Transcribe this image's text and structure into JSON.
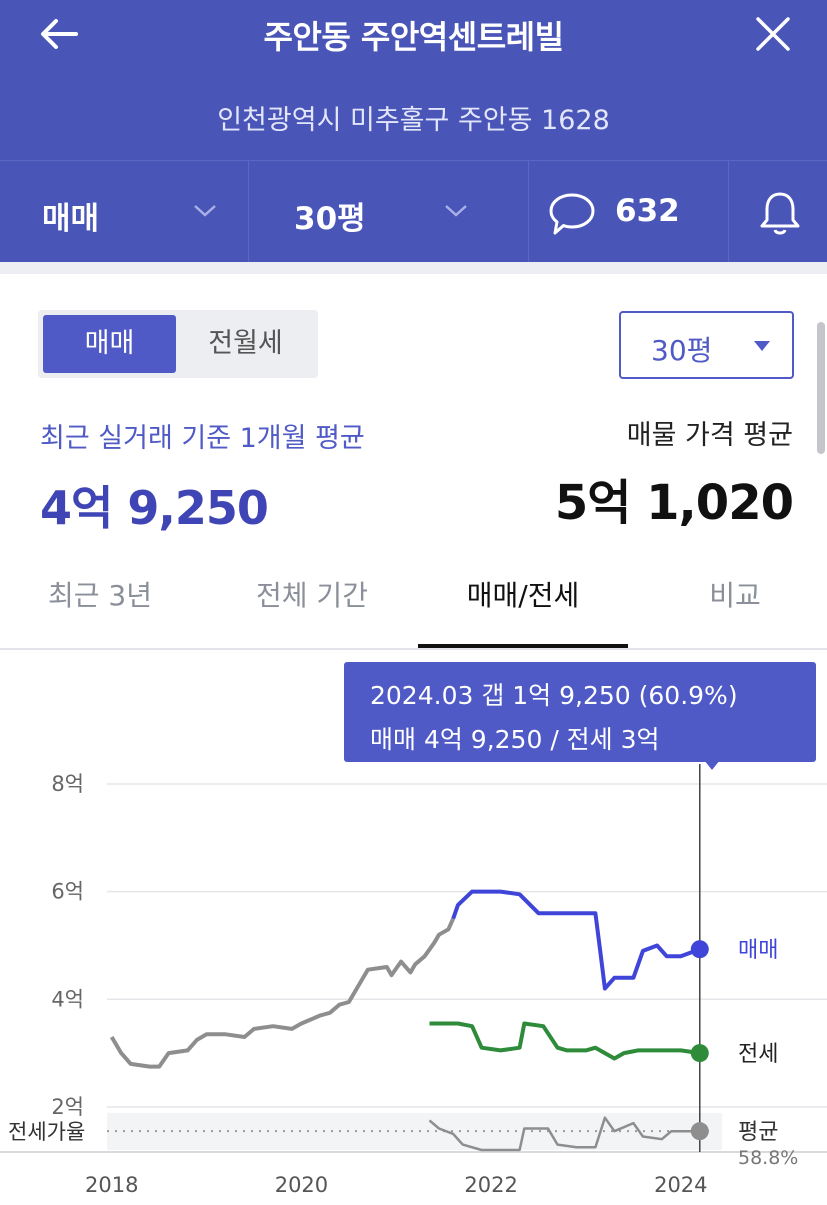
{
  "header": {
    "title": "주안동 주안역센트레빌",
    "address": "인천광역시 미추홀구 주안동 1628",
    "filters": {
      "deal_type": "매매",
      "size": "30평",
      "comment_count": "632"
    }
  },
  "controls": {
    "segment": [
      "매매",
      "전월세"
    ],
    "selected_segment": "매매",
    "size_select": "30평"
  },
  "summary": {
    "recent_label": "최근 실거래 기준 1개월 평균",
    "recent_value": "4억 9,250",
    "listing_label": "매물 가격 평균",
    "listing_value": "5억 1,020"
  },
  "tabs": [
    {
      "label": "최근 3년",
      "active": false
    },
    {
      "label": "전체 기간",
      "active": false
    },
    {
      "label": "매매/전세",
      "active": true
    },
    {
      "label": "비교",
      "active": false
    }
  ],
  "tooltip": {
    "line1": "2024.03  갭 1억 9,250 (60.9%)",
    "line2": "매매 4억 9,250 / 전세 3억"
  },
  "chart_data": {
    "type": "line",
    "y_unit": "억",
    "ylim": [
      1.2,
      8
    ],
    "yticks": [
      {
        "value": 8,
        "label": "8억"
      },
      {
        "value": 6,
        "label": "6억"
      },
      {
        "value": 4,
        "label": "4억"
      },
      {
        "value": 2,
        "label": "2억"
      }
    ],
    "xlim": [
      2017.95,
      2024.35
    ],
    "xticks": [
      {
        "value": 2018.0,
        "label": "2018"
      },
      {
        "value": 2020.0,
        "label": "2020"
      },
      {
        "value": 2022.0,
        "label": "2022"
      },
      {
        "value": 2024.0,
        "label": "2024"
      }
    ],
    "colors": {
      "sale": "#3f45d8",
      "sale_before": "#8e8e8e",
      "jeonse": "#2e8b3a",
      "ratio": "#8e8e8e",
      "cursor": "#444444"
    },
    "series": [
      {
        "name": "매매",
        "points": [
          [
            2018.0,
            3.3
          ],
          [
            2018.1,
            3.0
          ],
          [
            2018.2,
            2.8
          ],
          [
            2018.4,
            2.75
          ],
          [
            2018.5,
            2.75
          ],
          [
            2018.6,
            3.0
          ],
          [
            2018.8,
            3.05
          ],
          [
            2018.9,
            3.25
          ],
          [
            2019.0,
            3.35
          ],
          [
            2019.2,
            3.35
          ],
          [
            2019.4,
            3.3
          ],
          [
            2019.5,
            3.45
          ],
          [
            2019.7,
            3.5
          ],
          [
            2019.9,
            3.45
          ],
          [
            2020.0,
            3.55
          ],
          [
            2020.2,
            3.7
          ],
          [
            2020.3,
            3.75
          ],
          [
            2020.4,
            3.9
          ],
          [
            2020.5,
            3.95
          ],
          [
            2020.7,
            4.55
          ],
          [
            2020.9,
            4.6
          ],
          [
            2020.95,
            4.45
          ],
          [
            2021.05,
            4.7
          ],
          [
            2021.15,
            4.5
          ],
          [
            2021.2,
            4.65
          ],
          [
            2021.3,
            4.8
          ],
          [
            2021.4,
            5.05
          ],
          [
            2021.45,
            5.2
          ],
          [
            2021.55,
            5.3
          ],
          [
            2021.6,
            5.5
          ],
          [
            2021.65,
            5.75
          ],
          [
            2021.8,
            6.0
          ],
          [
            2022.1,
            6.0
          ],
          [
            2022.3,
            5.95
          ],
          [
            2022.5,
            5.6
          ],
          [
            2023.1,
            5.6
          ],
          [
            2023.15,
            4.9
          ],
          [
            2023.2,
            4.2
          ],
          [
            2023.3,
            4.4
          ],
          [
            2023.5,
            4.4
          ],
          [
            2023.6,
            4.9
          ],
          [
            2023.75,
            5.0
          ],
          [
            2023.85,
            4.8
          ],
          [
            2024.0,
            4.8
          ],
          [
            2024.2,
            4.93
          ]
        ]
      },
      {
        "name": "전세",
        "points": [
          [
            2021.35,
            3.55
          ],
          [
            2021.65,
            3.55
          ],
          [
            2021.8,
            3.5
          ],
          [
            2021.9,
            3.1
          ],
          [
            2022.1,
            3.05
          ],
          [
            2022.3,
            3.1
          ],
          [
            2022.35,
            3.55
          ],
          [
            2022.55,
            3.5
          ],
          [
            2022.7,
            3.1
          ],
          [
            2022.8,
            3.05
          ],
          [
            2023.0,
            3.05
          ],
          [
            2023.1,
            3.1
          ],
          [
            2023.2,
            3.0
          ],
          [
            2023.3,
            2.9
          ],
          [
            2023.4,
            3.0
          ],
          [
            2023.55,
            3.05
          ],
          [
            2023.7,
            3.05
          ],
          [
            2024.0,
            3.05
          ],
          [
            2024.2,
            3.0
          ]
        ]
      },
      {
        "name": "평균",
        "points": [
          [
            2021.35,
            1.75
          ],
          [
            2021.45,
            1.6
          ],
          [
            2021.6,
            1.5
          ],
          [
            2021.7,
            1.3
          ],
          [
            2021.9,
            1.2
          ],
          [
            2022.3,
            1.2
          ],
          [
            2022.35,
            1.6
          ],
          [
            2022.6,
            1.6
          ],
          [
            2022.7,
            1.3
          ],
          [
            2022.9,
            1.25
          ],
          [
            2023.1,
            1.25
          ],
          [
            2023.2,
            1.8
          ],
          [
            2023.3,
            1.55
          ],
          [
            2023.5,
            1.7
          ],
          [
            2023.6,
            1.45
          ],
          [
            2023.8,
            1.4
          ],
          [
            2023.9,
            1.55
          ],
          [
            2024.2,
            1.55
          ]
        ]
      }
    ],
    "reference_line": {
      "label": "전세가율",
      "value": 1.55
    },
    "end_labels": [
      {
        "series": "매매",
        "label": "매매",
        "value": 4.93
      },
      {
        "series": "전세",
        "label": "전세",
        "value": 3.0
      },
      {
        "series": "평균",
        "label": "평균",
        "sub": "58.8%",
        "value": 1.55
      }
    ],
    "cursor_x": 2024.2
  }
}
